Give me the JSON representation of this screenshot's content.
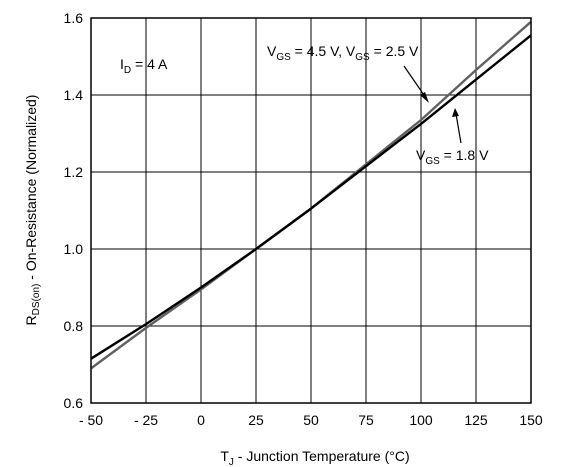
{
  "chart_data": {
    "type": "line",
    "xlabel_main": "T",
    "xlabel_sub": "J",
    "xlabel_rest": " - Junction Temperature (°C)",
    "ylabel_main": "R",
    "ylabel_sub": "DS(on)",
    "ylabel_rest": " - On-Resistance (Normalized)",
    "xlim": [
      -50,
      150
    ],
    "ylim": [
      0.6,
      1.6
    ],
    "xticks": [
      "- 50",
      "- 25",
      "0",
      "25",
      "50",
      "75",
      "100",
      "125",
      "150"
    ],
    "xtick_values": [
      -50,
      -25,
      0,
      25,
      50,
      75,
      100,
      125,
      150
    ],
    "yticks": [
      "0.6",
      "0.8",
      "1.0",
      "1.2",
      "1.4",
      "1.6"
    ],
    "ytick_values": [
      0.6,
      0.8,
      1.0,
      1.2,
      1.4,
      1.6
    ],
    "grid": true,
    "series": [
      {
        "label": "VGS = 4.5 V, VGS = 2.5 V",
        "color": "#606060",
        "x": [
          -50,
          -25,
          0,
          25,
          50,
          75,
          100,
          125,
          150
        ],
        "y": [
          0.69,
          0.795,
          0.895,
          1.0,
          1.105,
          1.22,
          1.335,
          1.465,
          1.59
        ]
      },
      {
        "label": "VGS = 1.8 V",
        "color": "#000000",
        "x": [
          -50,
          -25,
          0,
          25,
          50,
          75,
          100,
          125,
          150
        ],
        "y": [
          0.715,
          0.805,
          0.9,
          1.0,
          1.105,
          1.215,
          1.325,
          1.44,
          1.555
        ]
      }
    ],
    "annotations": {
      "id": {
        "main": "I",
        "sub": "D",
        "rest": " = 4 A"
      },
      "vgs_high": {
        "p1": "V",
        "s1": "GS",
        "p2": " = 4.5 V, V",
        "s2": "GS",
        "p3": " = 2.5 V"
      },
      "vgs_low": {
        "p1": "V",
        "s1": "GS",
        "p2": " = 1.8 V"
      }
    }
  }
}
